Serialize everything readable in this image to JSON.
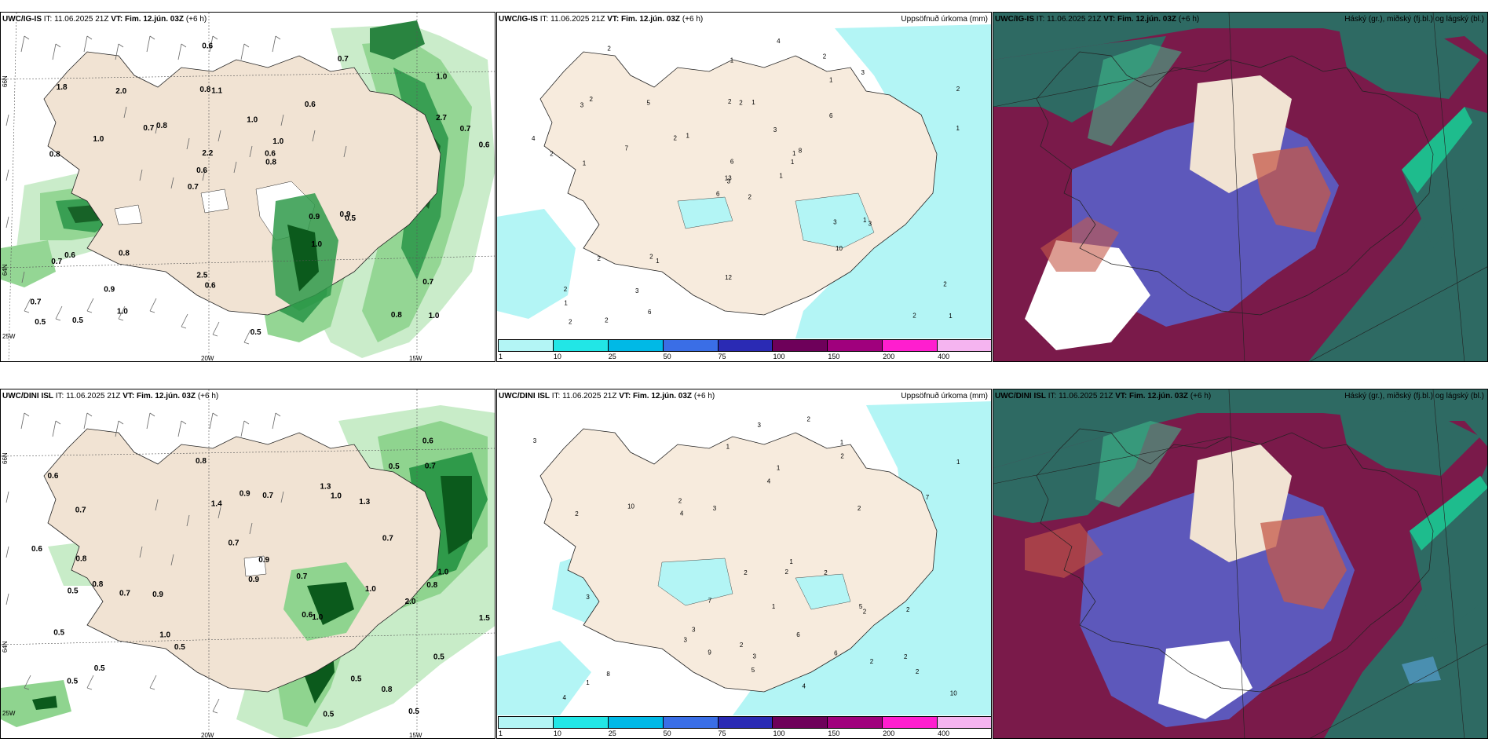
{
  "panels": {
    "p1": {
      "model": "UWC/IG-IS",
      "it_label": "IT:",
      "it": "11.06.2025 21Z",
      "vt_label": "VT:",
      "vt": "Fim. 12.jún. 03Z",
      "lead": "(+6 h)",
      "right_title": ""
    },
    "p2": {
      "model": "UWC/IG-IS",
      "it_label": "IT:",
      "it": "11.06.2025 21Z",
      "vt_label": "VT:",
      "vt": "Fim. 12.jún. 03Z",
      "lead": "(+6 h)",
      "right_title": "Uppsöfnuð úrkoma (mm)"
    },
    "p3": {
      "model": "UWC/IG-IS",
      "it_label": "IT:",
      "it": "11.06.2025 21Z",
      "vt_label": "VT:",
      "vt": "Fim. 12.jún. 03Z",
      "lead": "(+6 h)",
      "right_title": "Háský (gr.), miðský (fj.bl.) og lágský (bl.)"
    },
    "p4": {
      "model": "UWC/DINI ISL",
      "it_label": "IT:",
      "it": "11.06.2025 21Z",
      "vt_label": "VT:",
      "vt": "Fim. 12.jún. 03Z",
      "lead": "(+6 h)",
      "right_title": ""
    },
    "p5": {
      "model": "UWC/DINI ISL",
      "it_label": "IT:",
      "it": "11.06.2025 21Z",
      "vt_label": "VT:",
      "vt": "Fim. 12.jún. 03Z",
      "lead": "(+6 h)",
      "right_title": "Uppsöfnuð úrkoma (mm)"
    },
    "p6": {
      "model": "UWC/DINI ISL",
      "it_label": "IT:",
      "it": "11.06.2025 21Z",
      "vt_label": "VT:",
      "vt": "Fim. 12.jún. 03Z",
      "lead": "(+6 h)",
      "right_title": "Háský (gr.), miðský (fj.bl.) og lágský (bl.)"
    }
  },
  "axes": {
    "lon_20": "20W",
    "lon_15": "15W",
    "lon_25": "25W",
    "lat_66": "66N",
    "lat_64": "64N"
  },
  "colorbar": {
    "labels": [
      "1",
      "10",
      "25",
      "50",
      "75",
      "100",
      "150",
      "200",
      "400"
    ],
    "colors": [
      "#b3f5f5",
      "#22e6e6",
      "#00b9e6",
      "#3a6ee6",
      "#2a2ab4",
      "#6e005a",
      "#a0007d",
      "#ff1ecf",
      "#f5b4f0"
    ]
  },
  "p1_labels": [
    "1.0",
    "0.8",
    "1.0",
    "0.7",
    "0.6",
    "0.5",
    "0.8",
    "1.0",
    "0.6",
    "0.8",
    "0.7",
    "0.9",
    "1.1",
    "1.0",
    "0.5",
    "1.8",
    "0.6",
    "0.6",
    "0.9",
    "2.7",
    "0.6",
    "2.5",
    "2.2",
    "2.0",
    "0.7",
    "0.8",
    "0.8",
    "0.7",
    "0.9",
    "0.5",
    "0.7",
    "1.0",
    "1.0",
    "1.0",
    "0.7",
    "0.6",
    "0.5",
    "0.6",
    "0.8",
    "0.7"
  ],
  "p4_labels": [
    "0.5",
    "0.8",
    "0.6",
    "0.6",
    "0.5",
    "0.7",
    "0.5",
    "0.9",
    "1.3",
    "0.9",
    "1.0",
    "0.8",
    "0.5",
    "0.8",
    "0.7",
    "0.5",
    "1.0",
    "0.9",
    "0.6",
    "0.5",
    "0.6",
    "0.7",
    "0.7",
    "1.5",
    "1.0",
    "0.8",
    "0.7",
    "0.9",
    "0.7",
    "0.7",
    "1.0",
    "0.5",
    "1.0",
    "1.3",
    "1.4",
    "2.0",
    "0.8",
    "0.5",
    "0.5",
    "0.5"
  ],
  "p2_labels": [
    "2",
    "3",
    "3",
    "2",
    "1",
    "1",
    "2",
    "1",
    "1",
    "1",
    "2",
    "1",
    "1",
    "2",
    "6",
    "6",
    "2",
    "2",
    "3",
    "2",
    "1",
    "1",
    "3",
    "2",
    "8",
    "3",
    "2",
    "1",
    "2",
    "3",
    "1",
    "13",
    "12",
    "6",
    "5",
    "3",
    "2",
    "2",
    "2",
    "1",
    "4",
    "2",
    "7",
    "10",
    "6",
    "4",
    "1",
    "2"
  ],
  "p5_labels": [
    "1",
    "2",
    "1",
    "1",
    "1",
    "2",
    "2",
    "1",
    "2",
    "3",
    "10",
    "4",
    "9",
    "3",
    "6",
    "2",
    "5",
    "3",
    "2",
    "1",
    "3",
    "8",
    "5",
    "2",
    "2",
    "2",
    "3",
    "4",
    "7",
    "6",
    "2",
    "7",
    "1",
    "4",
    "2",
    "4",
    "3",
    "2",
    "2",
    "2",
    "10",
    "3"
  ]
}
